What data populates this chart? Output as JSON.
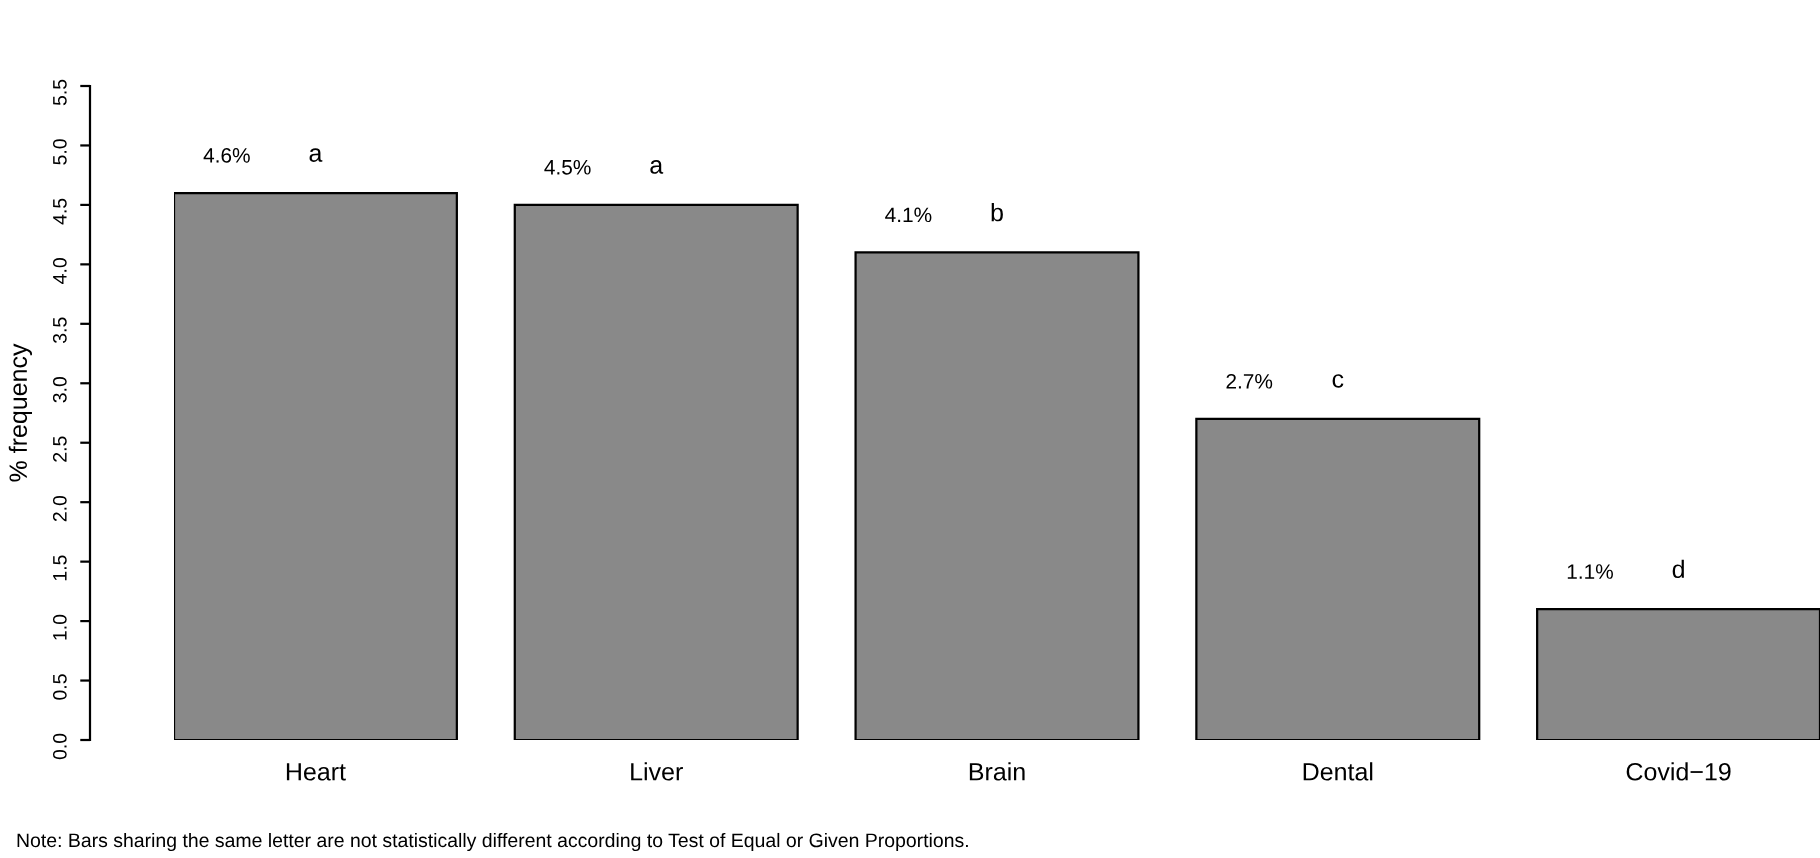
{
  "chart_data": {
    "type": "bar",
    "ylabel": "% frequency",
    "categories": [
      "Heart",
      "Liver",
      "Brain",
      "Dental",
      "Covid−19"
    ],
    "values": [
      4.6,
      4.5,
      4.1,
      2.7,
      1.1
    ],
    "value_labels": [
      "4.6%",
      "4.5%",
      "4.1%",
      "2.7%",
      "1.1%"
    ],
    "color": "#898989",
    "ylim": [
      0,
      5.5
    ],
    "yticks": [
      {
        "value": 0,
        "label": "0.0"
      },
      {
        "value": 0.5,
        "label": "0.5"
      },
      {
        "value": 1,
        "label": "1.0"
      },
      {
        "value": 1.5,
        "label": "1.5"
      },
      {
        "value": 2,
        "label": "2.0"
      },
      {
        "value": 2.5,
        "label": "2.5"
      },
      {
        "value": 3,
        "label": "3.0"
      },
      {
        "value": 3.5,
        "label": "3.5"
      },
      {
        "value": 4,
        "label": "4.0"
      },
      {
        "value": 4.5,
        "label": "4.5"
      },
      {
        "value": 5,
        "label": "5.0"
      },
      {
        "value": 5.5,
        "label": "5.5"
      }
    ],
    "grid": false,
    "legend": false,
    "annotations": [
      {
        "text": "a",
        "x": "Heart",
        "y": 4.6
      },
      {
        "text": "a",
        "x": "Liver",
        "y": 4.5
      },
      {
        "text": "b",
        "x": "Brain",
        "y": 4.1
      },
      {
        "text": "c",
        "x": "Dental",
        "y": 2.7
      },
      {
        "text": "d",
        "x": "Covid−19",
        "y": 1.1
      },
      "Note: Bars sharing the same letter are not statistically different according to Test of Equal or Given Proportions."
    ]
  }
}
